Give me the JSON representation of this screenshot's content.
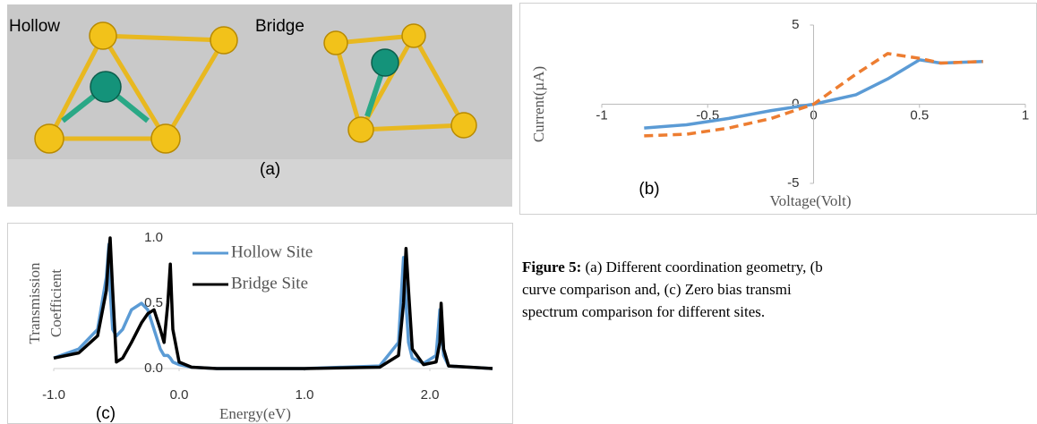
{
  "panel_a": {
    "labels": [
      "Hollow",
      "Bridge"
    ],
    "tag": "(a)"
  },
  "chart_data": [
    {
      "type": "line",
      "xlabel": "Voltage(Volt)",
      "ylabel": "Current(µA)",
      "tag": "(b)",
      "x": [
        -0.8,
        -0.6,
        -0.4,
        -0.2,
        0,
        0.2,
        0.35,
        0.5,
        0.6,
        0.8
      ],
      "series": [
        {
          "color": "#5b9bd5",
          "dashed": false,
          "values": [
            -1.5,
            -1.3,
            -0.9,
            -0.4,
            0,
            0.6,
            1.6,
            2.8,
            2.6,
            2.7
          ]
        },
        {
          "color": "#ed7d31",
          "dashed": true,
          "values": [
            -2.0,
            -1.9,
            -1.5,
            -0.9,
            0,
            1.9,
            3.2,
            2.9,
            2.6,
            2.7
          ]
        }
      ],
      "xlim": [
        -1,
        1
      ],
      "xticks": [
        -1,
        -0.5,
        0,
        0.5,
        1
      ],
      "ylim": [
        -5,
        5
      ],
      "yticks": [
        -5,
        0,
        5
      ]
    },
    {
      "type": "line",
      "xlabel": "Energy(eV)",
      "ylabel": [
        "Transmission",
        "Coefficient"
      ],
      "tag": "(c)",
      "x": [
        -1.0,
        -0.8,
        -0.65,
        -0.58,
        -0.56,
        -0.55,
        -0.53,
        -0.5,
        -0.45,
        -0.38,
        -0.3,
        -0.25,
        -0.2,
        -0.15,
        -0.12,
        -0.09,
        -0.07,
        -0.05,
        0,
        0.1,
        0.3,
        1.0,
        1.6,
        1.75,
        1.79,
        1.81,
        1.83,
        1.86,
        1.95,
        2.05,
        2.08,
        2.09,
        2.11,
        2.15,
        2.5
      ],
      "series": [
        {
          "name": "Hollow Site",
          "color": "#5b9bd5",
          "values": [
            0.08,
            0.15,
            0.3,
            0.7,
            0.95,
            0.6,
            0.3,
            0.25,
            0.3,
            0.45,
            0.5,
            0.45,
            0.3,
            0.15,
            0.1,
            0.1,
            0.08,
            0.05,
            0.03,
            0.01,
            0,
            0,
            0.02,
            0.2,
            0.85,
            0.5,
            0.2,
            0.08,
            0.04,
            0.1,
            0.45,
            0.3,
            0.1,
            0.02,
            0
          ]
        },
        {
          "name": "Bridge Site",
          "color": "#000000",
          "values": [
            0.08,
            0.12,
            0.25,
            0.6,
            0.9,
            1.0,
            0.6,
            0.05,
            0.08,
            0.2,
            0.35,
            0.42,
            0.45,
            0.3,
            0.2,
            0.5,
            0.8,
            0.3,
            0.05,
            0.01,
            0,
            0,
            0.01,
            0.1,
            0.5,
            0.92,
            0.6,
            0.15,
            0.03,
            0.05,
            0.2,
            0.5,
            0.15,
            0.02,
            0
          ]
        }
      ],
      "xlim": [
        -1,
        2.5
      ],
      "xticks": [
        {
          "value": -1,
          "label": "-1.0"
        },
        {
          "value": 0,
          "label": "0.0"
        },
        {
          "value": 1,
          "label": "1.0"
        },
        {
          "value": 2,
          "label": "2.0"
        }
      ],
      "ylim": [
        0,
        1
      ],
      "yticks": [
        {
          "value": 0,
          "label": "0.0"
        },
        {
          "value": 0.5,
          "label": "0.5"
        },
        {
          "value": 1,
          "label": "1.0"
        }
      ]
    }
  ],
  "caption": {
    "label": "Figure 5:",
    "lines": [
      "(a) Different coordination geometry, (b",
      "curve comparison and, (c) Zero bias transmi",
      "spectrum comparison for different sites."
    ]
  }
}
